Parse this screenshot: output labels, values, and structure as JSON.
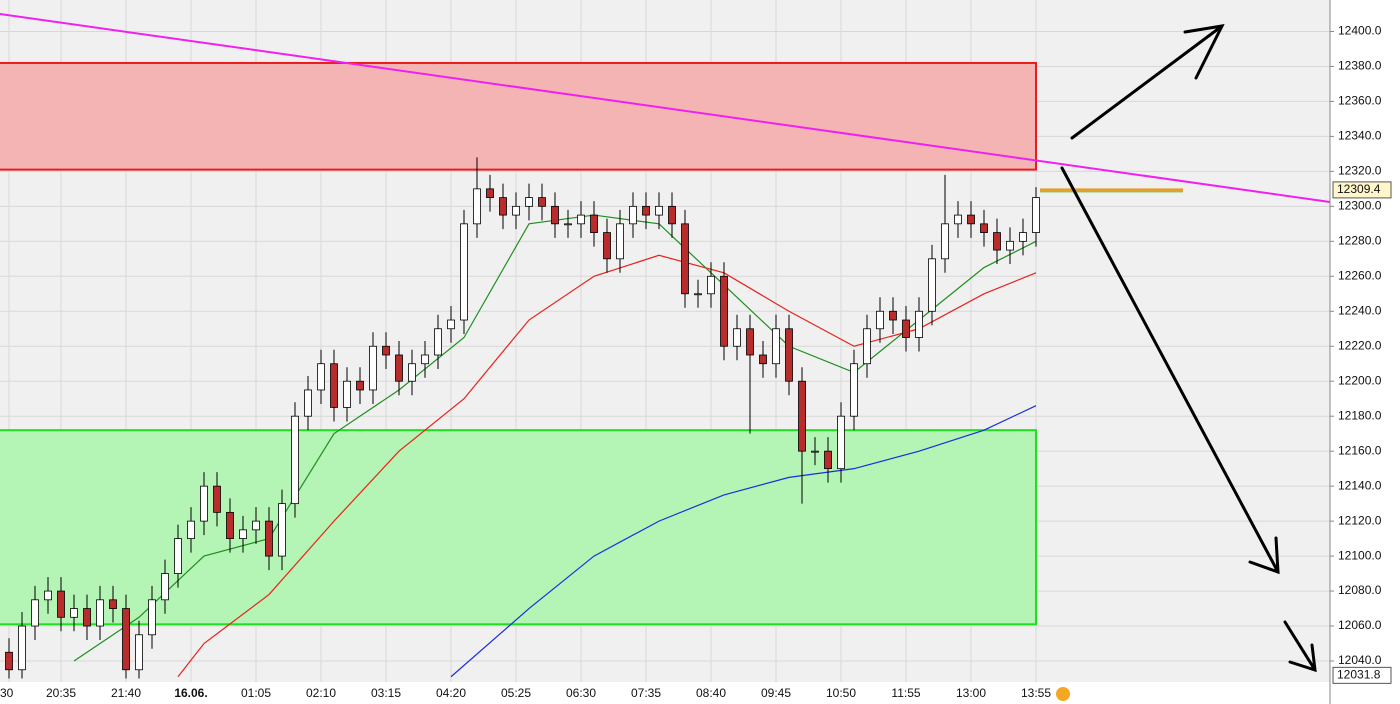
{
  "chart_data": {
    "type": "candlestick",
    "categories": [
      "30",
      null,
      null,
      null,
      "20:35",
      null,
      null,
      null,
      null,
      "21:40",
      null,
      null,
      null,
      null,
      "16.06.",
      null,
      null,
      null,
      null,
      "01:05",
      null,
      null,
      null,
      null,
      "02:10",
      null,
      null,
      null,
      null,
      "03:15",
      null,
      null,
      null,
      null,
      "04:20",
      null,
      null,
      null,
      null,
      "05:25",
      null,
      null,
      null,
      null,
      "06:30",
      null,
      null,
      null,
      null,
      "07:35",
      null,
      null,
      null,
      null,
      "08:40",
      null,
      null,
      null,
      null,
      "09:45",
      null,
      null,
      null,
      null,
      "10:50",
      null,
      null,
      null,
      null,
      "11:55",
      null,
      null,
      null,
      null,
      "13:00",
      null,
      null,
      null,
      null,
      "13:55"
    ],
    "open": [
      12045,
      12035,
      12060,
      12075,
      12080,
      12065,
      12070,
      12060,
      12075,
      12070,
      12035,
      12055,
      12075,
      12090,
      12110,
      12120,
      12140,
      12125,
      12110,
      12115,
      12120,
      12100,
      12130,
      12180,
      12195,
      12210,
      12185,
      12200,
      12195,
      12220,
      12215,
      12200,
      12210,
      12215,
      12230,
      12235,
      12290,
      12310,
      12305,
      12295,
      12300,
      12305,
      12300,
      12290,
      12290,
      12295,
      12285,
      12270,
      12290,
      12300,
      12295,
      12300,
      12290,
      12250,
      12250,
      12260,
      12220,
      12230,
      12215,
      12210,
      12230,
      12200,
      12160,
      12160,
      12150,
      12180,
      12210,
      12230,
      12240,
      12235,
      12225,
      12240,
      12270,
      12290,
      12295,
      12290,
      12285,
      12275,
      12280,
      12285
    ],
    "high": [
      12053,
      12068,
      12083,
      12088,
      12088,
      12078,
      12078,
      12083,
      12083,
      12078,
      12063,
      12083,
      12098,
      12118,
      12128,
      12148,
      12148,
      12133,
      12123,
      12128,
      12128,
      12138,
      12188,
      12203,
      12218,
      12218,
      12208,
      12208,
      12228,
      12228,
      12223,
      12218,
      12223,
      12238,
      12243,
      12298,
      12328,
      12318,
      12313,
      12308,
      12313,
      12313,
      12308,
      12298,
      12303,
      12303,
      12293,
      12298,
      12308,
      12308,
      12308,
      12308,
      12298,
      12258,
      12268,
      12268,
      12238,
      12238,
      12223,
      12238,
      12238,
      12208,
      12168,
      12168,
      12188,
      12218,
      12238,
      12248,
      12248,
      12243,
      12248,
      12278,
      12318,
      12303,
      12303,
      12298,
      12293,
      12288,
      12293,
      12311
    ],
    "low": [
      12030,
      12030,
      12052,
      12067,
      12057,
      12057,
      12052,
      12052,
      12062,
      12030,
      12030,
      12047,
      12067,
      12082,
      12102,
      12112,
      12117,
      12102,
      12102,
      12107,
      12092,
      12092,
      12122,
      12172,
      12187,
      12177,
      12177,
      12187,
      12187,
      12207,
      12192,
      12192,
      12202,
      12207,
      12222,
      12227,
      12282,
      12297,
      12287,
      12287,
      12292,
      12292,
      12282,
      12282,
      12282,
      12277,
      12262,
      12262,
      12282,
      12287,
      12287,
      12282,
      12242,
      12242,
      12242,
      12212,
      12212,
      12170,
      12202,
      12202,
      12192,
      12130,
      12152,
      12142,
      12142,
      12172,
      12202,
      12222,
      12227,
      12217,
      12217,
      12232,
      12262,
      12282,
      12282,
      12277,
      12267,
      12267,
      12272,
      12277
    ],
    "close": [
      12035,
      12060,
      12075,
      12080,
      12065,
      12070,
      12060,
      12075,
      12070,
      12035,
      12055,
      12075,
      12090,
      12110,
      12120,
      12140,
      12125,
      12110,
      12115,
      12120,
      12100,
      12130,
      12180,
      12195,
      12210,
      12185,
      12200,
      12195,
      12220,
      12215,
      12200,
      12210,
      12215,
      12230,
      12235,
      12290,
      12310,
      12305,
      12295,
      12300,
      12305,
      12300,
      12290,
      12290,
      12295,
      12285,
      12270,
      12290,
      12300,
      12295,
      12300,
      12290,
      12250,
      12250,
      12260,
      12220,
      12230,
      12215,
      12210,
      12230,
      12200,
      12160,
      12160,
      12150,
      12180,
      12210,
      12230,
      12240,
      12235,
      12225,
      12240,
      12270,
      12290,
      12295,
      12290,
      12285,
      12275,
      12280,
      12285,
      12305
    ],
    "up_color": "#ffffff",
    "down_color": "#b82c2c",
    "lines": [
      {
        "color": "#1f8f1f",
        "x": [
          5,
          10,
          15,
          20,
          25,
          30,
          35,
          40,
          45,
          50,
          55,
          60,
          65,
          70,
          75,
          79
        ],
        "values": [
          12040,
          12065,
          12100,
          12110,
          12170,
          12195,
          12225,
          12290,
          12295,
          12290,
          12255,
          12220,
          12205,
          12235,
          12265,
          12280
        ]
      },
      {
        "color": "#e8221c",
        "x": [
          13,
          15,
          20,
          25,
          30,
          35,
          40,
          45,
          50,
          55,
          60,
          65,
          70,
          75,
          79
        ],
        "values": [
          12031,
          12050,
          12078,
          12120,
          12160,
          12190,
          12235,
          12260,
          12272,
          12262,
          12240,
          12220,
          12230,
          12250,
          12262
        ]
      },
      {
        "color": "#1a2ee0",
        "x": [
          34,
          40,
          45,
          50,
          55,
          60,
          65,
          70,
          75,
          79
        ],
        "values": [
          12031,
          12070,
          12100,
          12120,
          12135,
          12145,
          12150,
          12160,
          12172,
          12186
        ]
      }
    ],
    "trendline": {
      "color": "#f020f0",
      "x": [
        -0.7,
        101.6
      ],
      "values": [
        12410,
        12302.5
      ]
    },
    "zones": [
      {
        "fill": "#f4b4b4",
        "border": "#e81c1c",
        "range": [
          12321,
          12382
        ]
      },
      {
        "fill": "#b4f4b4",
        "border": "#1ee01e",
        "range": [
          12061,
          12172
        ]
      }
    ],
    "price_markers": [
      12309.4,
      12031.8
    ],
    "ylim": [
      12028,
      12418
    ],
    "yticks": [
      {
        "value": 12040,
        "label": "12040.0"
      },
      {
        "value": 12060,
        "label": "12060.0"
      },
      {
        "value": 12080,
        "label": "12080.0"
      },
      {
        "value": 12100,
        "label": "12100.0"
      },
      {
        "value": 12120,
        "label": "12120.0"
      },
      {
        "value": 12140,
        "label": "12140.0"
      },
      {
        "value": 12160,
        "label": "12160.0"
      },
      {
        "value": 12180,
        "label": "12180.0"
      },
      {
        "value": 12200,
        "label": "12200.0"
      },
      {
        "value": 12220,
        "label": "12220.0"
      },
      {
        "value": 12240,
        "label": "12240.0"
      },
      {
        "value": 12260,
        "label": "12260.0"
      },
      {
        "value": 12280,
        "label": "12280.0"
      },
      {
        "value": 12300,
        "label": "12300.0"
      },
      {
        "value": 12320,
        "label": "12320.0"
      },
      {
        "value": 12340,
        "label": "12340.0"
      },
      {
        "value": 12360,
        "label": "12360.0"
      },
      {
        "value": 12380,
        "label": "12380.0"
      },
      {
        "value": 12400,
        "label": "12400.0"
      }
    ],
    "grid": true
  }
}
